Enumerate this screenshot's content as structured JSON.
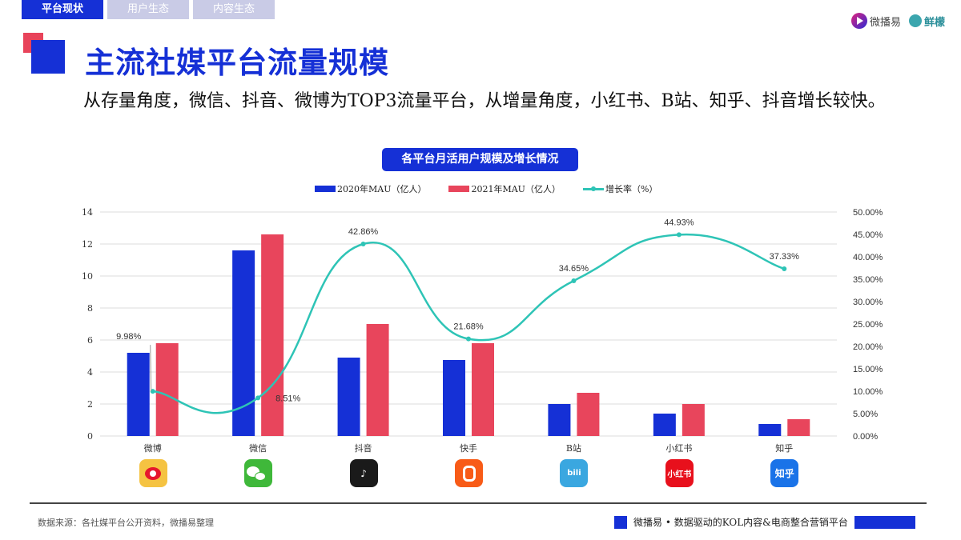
{
  "tabs": [
    {
      "label": "平台现状",
      "active": true
    },
    {
      "label": "用户生态",
      "active": false
    },
    {
      "label": "内容生态",
      "active": false
    }
  ],
  "logos": {
    "brand1": "微播易",
    "brand2": "鲜檬"
  },
  "header": {
    "title": "主流社媒平台流量规模",
    "subtitle": "从存量角度，微信、抖音、微博为TOP3流量平台，从增量角度，小红书、B站、知乎、抖音增长较快。"
  },
  "colors": {
    "accent": "#1530d6",
    "series2020": "#1530d6",
    "series2021": "#e8455c",
    "growth": "#2ec4b6"
  },
  "chart_data": {
    "type": "bar",
    "title": "各平台月活用户规模及增长情况",
    "categories": [
      "微博",
      "微信",
      "抖音",
      "快手",
      "B站",
      "小红书",
      "知乎"
    ],
    "series": [
      {
        "name": "2020年MAU（亿人）",
        "type": "bar",
        "axis": "left",
        "values": [
          5.2,
          11.6,
          4.9,
          4.75,
          2.0,
          1.4,
          0.75
        ]
      },
      {
        "name": "2021年MAU（亿人）",
        "type": "bar",
        "axis": "left",
        "values": [
          5.8,
          12.6,
          7.0,
          5.8,
          2.7,
          2.0,
          1.05
        ]
      },
      {
        "name": "增长率（%）",
        "type": "line",
        "axis": "right",
        "values": [
          9.98,
          8.51,
          42.86,
          21.68,
          34.65,
          44.93,
          37.33
        ],
        "labels": [
          "9.98%",
          "8.51%",
          "42.86%",
          "21.68%",
          "34.65%",
          "44.93%",
          "37.33%"
        ]
      }
    ],
    "left_axis": {
      "ticks": [
        "0",
        "2",
        "4",
        "6",
        "8",
        "10",
        "12",
        "14"
      ],
      "ylim": [
        0,
        14
      ]
    },
    "right_axis": {
      "ticks": [
        "0.00%",
        "5.00%",
        "10.00%",
        "15.00%",
        "20.00%",
        "25.00%",
        "30.00%",
        "35.00%",
        "40.00%",
        "45.00%",
        "50.00%"
      ],
      "ylim": [
        0,
        50
      ]
    },
    "grid": true,
    "legend_position": "top"
  },
  "footer": {
    "source": "数据来源：各社媒平台公开资料，微播易整理",
    "tagline": "微播易 • 数据驱动的KOL内容&电商整合营销平台"
  },
  "app_icons": [
    {
      "name": "微博",
      "text": "",
      "color": "#f5c342"
    },
    {
      "name": "微信",
      "text": "",
      "color": "#3fb83a"
    },
    {
      "name": "抖音",
      "text": "♪",
      "color": "#1a1a1a"
    },
    {
      "name": "快手",
      "text": "",
      "color": "#f85b17"
    },
    {
      "name": "B站",
      "text": "bili",
      "color": "#3aa7e0"
    },
    {
      "name": "小红书",
      "text": "小红书",
      "color": "#e8101c"
    },
    {
      "name": "知乎",
      "text": "知乎",
      "color": "#1a73e8"
    }
  ]
}
